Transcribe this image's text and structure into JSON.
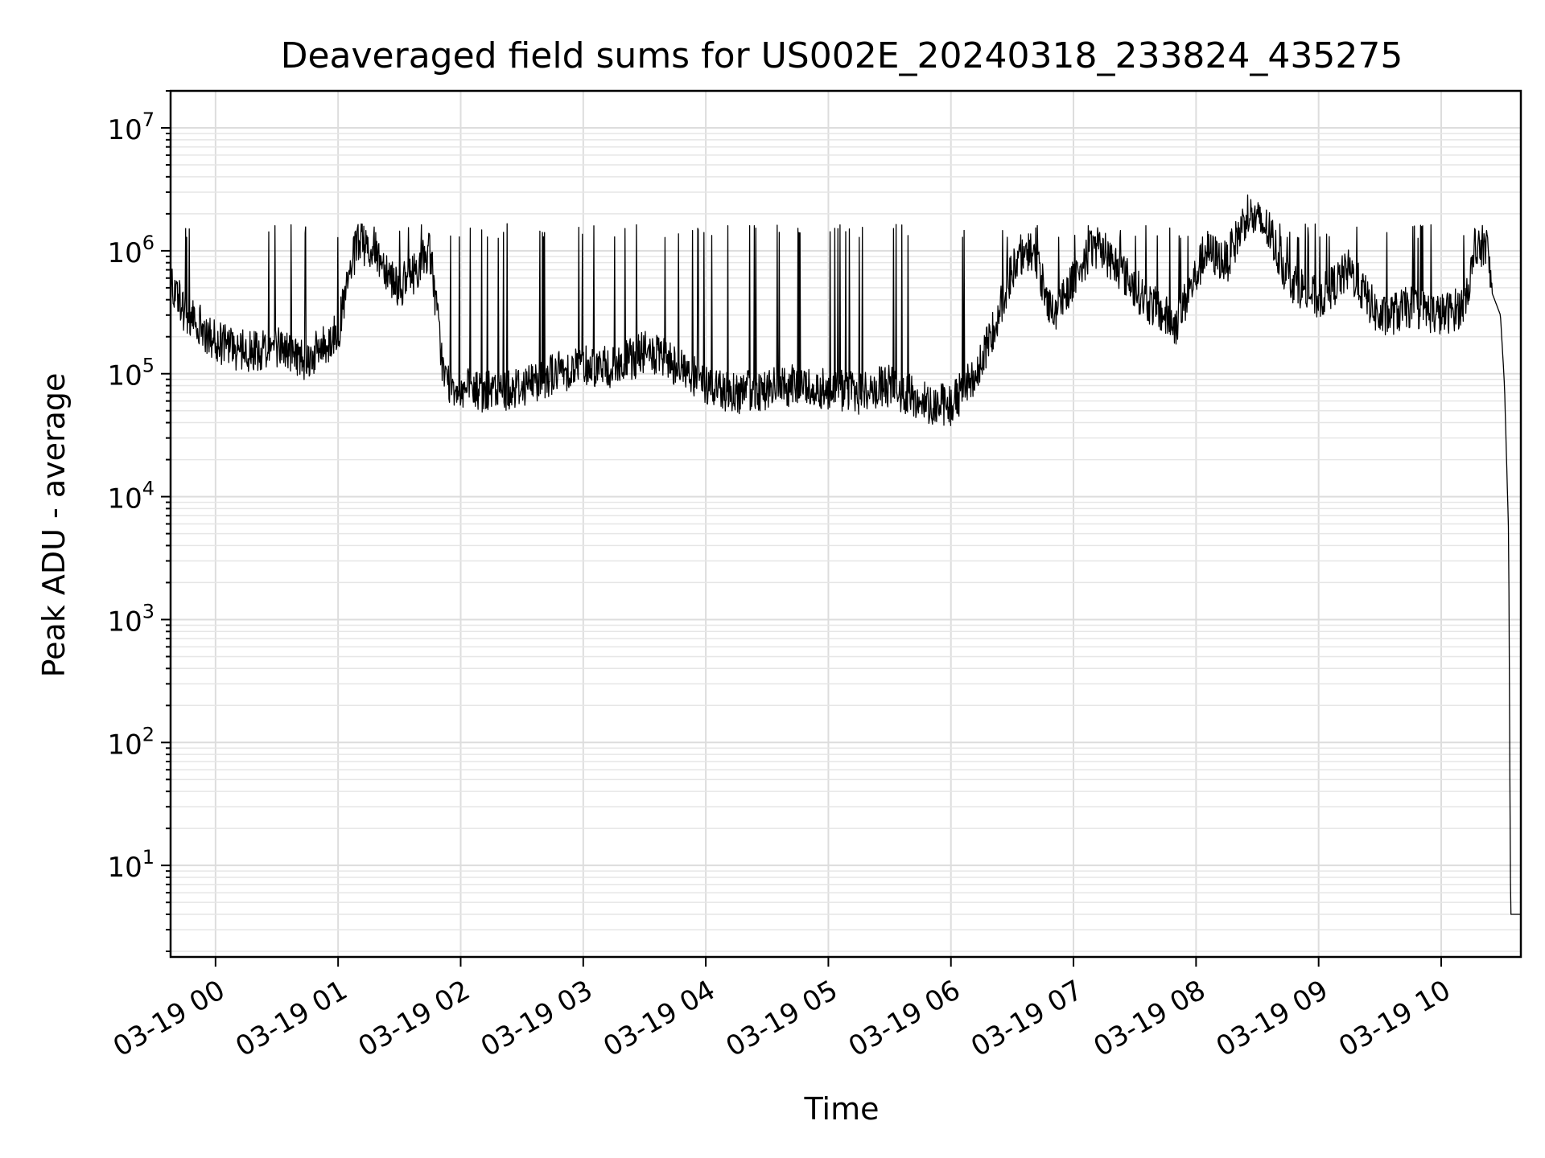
{
  "chart_data": {
    "type": "line",
    "title": "Deaveraged field sums for US002E_20240318_233824_435275",
    "xlabel": "Time",
    "ylabel": "Peak ADU - average",
    "x_scale": "time",
    "y_scale": "log",
    "xlim": [
      "2024-03-18 23:38",
      "2024-03-19 10:39"
    ],
    "ylim": [
      1.8,
      20000000
    ],
    "grid": true,
    "x_tick_labels": [
      "03-19 00",
      "03-19 01",
      "03-19 02",
      "03-19 03",
      "03-19 04",
      "03-19 05",
      "03-19 06",
      "03-19 07",
      "03-19 08",
      "03-19 09",
      "03-19 10"
    ],
    "y_tick_labels": [
      {
        "base": "10",
        "exp": "1"
      },
      {
        "base": "10",
        "exp": "2"
      },
      {
        "base": "10",
        "exp": "3"
      },
      {
        "base": "10",
        "exp": "4"
      },
      {
        "base": "10",
        "exp": "5"
      },
      {
        "base": "10",
        "exp": "6"
      },
      {
        "base": "10",
        "exp": "7"
      }
    ],
    "series": [
      {
        "color": "#000000",
        "x": [
          "2024-03-18 23:38",
          "2024-03-18 23:45",
          "2024-03-18 23:52",
          "2024-03-19 00:00",
          "2024-03-19 00:08",
          "2024-03-19 00:15",
          "2024-03-19 00:30",
          "2024-03-19 00:45",
          "2024-03-19 00:55",
          "2024-03-19 01:00",
          "2024-03-19 01:07",
          "2024-03-19 01:10",
          "2024-03-19 01:20",
          "2024-03-19 01:30",
          "2024-03-19 01:35",
          "2024-03-19 01:45",
          "2024-03-19 01:52",
          "2024-03-19 02:00",
          "2024-03-19 02:15",
          "2024-03-19 02:30",
          "2024-03-19 02:45",
          "2024-03-19 03:00",
          "2024-03-19 03:15",
          "2024-03-19 03:30",
          "2024-03-19 03:45",
          "2024-03-19 04:00",
          "2024-03-19 04:15",
          "2024-03-19 04:30",
          "2024-03-19 04:45",
          "2024-03-19 05:00",
          "2024-03-19 05:15",
          "2024-03-19 05:30",
          "2024-03-19 05:45",
          "2024-03-19 06:00",
          "2024-03-19 06:15",
          "2024-03-19 06:30",
          "2024-03-19 06:40",
          "2024-03-19 06:50",
          "2024-03-19 07:00",
          "2024-03-19 07:10",
          "2024-03-19 07:20",
          "2024-03-19 07:35",
          "2024-03-19 07:50",
          "2024-03-19 08:05",
          "2024-03-19 08:15",
          "2024-03-19 08:25",
          "2024-03-19 08:35",
          "2024-03-19 08:45",
          "2024-03-19 09:00",
          "2024-03-19 09:15",
          "2024-03-19 09:30",
          "2024-03-19 09:45",
          "2024-03-19 10:00",
          "2024-03-19 10:10",
          "2024-03-19 10:17",
          "2024-03-19 10:22",
          "2024-03-19 10:25",
          "2024-03-19 10:29",
          "2024-03-19 10:31",
          "2024-03-19 10:33",
          "2024-03-19 10:34",
          "2024-03-19 10:39"
        ],
        "y": [
          600000,
          300000,
          250000,
          180000,
          160000,
          150000,
          170000,
          130000,
          180000,
          220000,
          800000,
          1200000,
          900000,
          500000,
          600000,
          1000000,
          90000,
          75000,
          70000,
          80000,
          100000,
          120000,
          110000,
          150000,
          120000,
          80000,
          70000,
          75000,
          80000,
          75000,
          70000,
          80000,
          60000,
          55000,
          120000,
          700000,
          1000000,
          300000,
          600000,
          1100000,
          800000,
          400000,
          250000,
          1000000,
          800000,
          2000000,
          1500000,
          600000,
          400000,
          700000,
          280000,
          350000,
          300000,
          350000,
          900000,
          1200000,
          450000,
          300000,
          80000,
          5000,
          4,
          4
        ]
      }
    ]
  }
}
